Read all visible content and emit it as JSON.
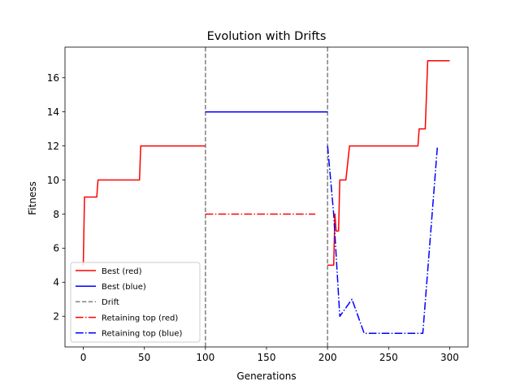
{
  "chart_data": {
    "type": "line",
    "title": "Evolution with Drifts",
    "xlabel": "Generations",
    "ylabel": "Fitness",
    "xlim": [
      -15,
      315
    ],
    "ylim": [
      0.2,
      17.8
    ],
    "xticks": [
      0,
      50,
      100,
      150,
      200,
      250,
      300
    ],
    "yticks": [
      2,
      4,
      6,
      8,
      10,
      12,
      14,
      16
    ],
    "grid": false,
    "legend_position": "lower-left",
    "drift_lines": [
      100,
      200
    ],
    "series": [
      {
        "name": "Best (red)",
        "color": "#ff0000",
        "style": "solid",
        "points": [
          [
            0,
            5
          ],
          [
            1,
            9
          ],
          [
            11,
            9
          ],
          [
            12,
            10
          ],
          [
            46,
            10
          ],
          [
            47,
            12
          ],
          [
            100,
            12
          ],
          null,
          [
            200,
            5
          ],
          [
            205,
            5
          ],
          [
            206,
            8
          ],
          [
            207,
            7
          ],
          [
            209,
            7
          ],
          [
            210,
            10
          ],
          [
            215,
            10
          ],
          [
            218,
            12
          ],
          [
            274,
            12
          ],
          [
            275,
            13
          ],
          [
            280,
            13
          ],
          [
            282,
            17
          ],
          [
            300,
            17
          ]
        ]
      },
      {
        "name": "Best (blue)",
        "color": "#0000ff",
        "style": "solid",
        "points": [
          [
            100,
            14
          ],
          [
            200,
            14
          ]
        ]
      },
      {
        "name": "Drift",
        "color": "#808080",
        "style": "dashed",
        "points": []
      },
      {
        "name": "Retaining top (red)",
        "color": "#ff0000",
        "style": "dashdot",
        "points": [
          [
            100,
            8
          ],
          [
            190,
            8
          ]
        ]
      },
      {
        "name": "Retaining top (blue)",
        "color": "#0000ff",
        "style": "dashdot",
        "points": [
          [
            200,
            12
          ],
          [
            205,
            8
          ],
          [
            210,
            2
          ],
          [
            220,
            3
          ],
          [
            230,
            1
          ],
          [
            240,
            1
          ],
          [
            250,
            1
          ],
          [
            260,
            1
          ],
          [
            270,
            1
          ],
          [
            278,
            1
          ],
          [
            290,
            12
          ]
        ]
      }
    ]
  }
}
